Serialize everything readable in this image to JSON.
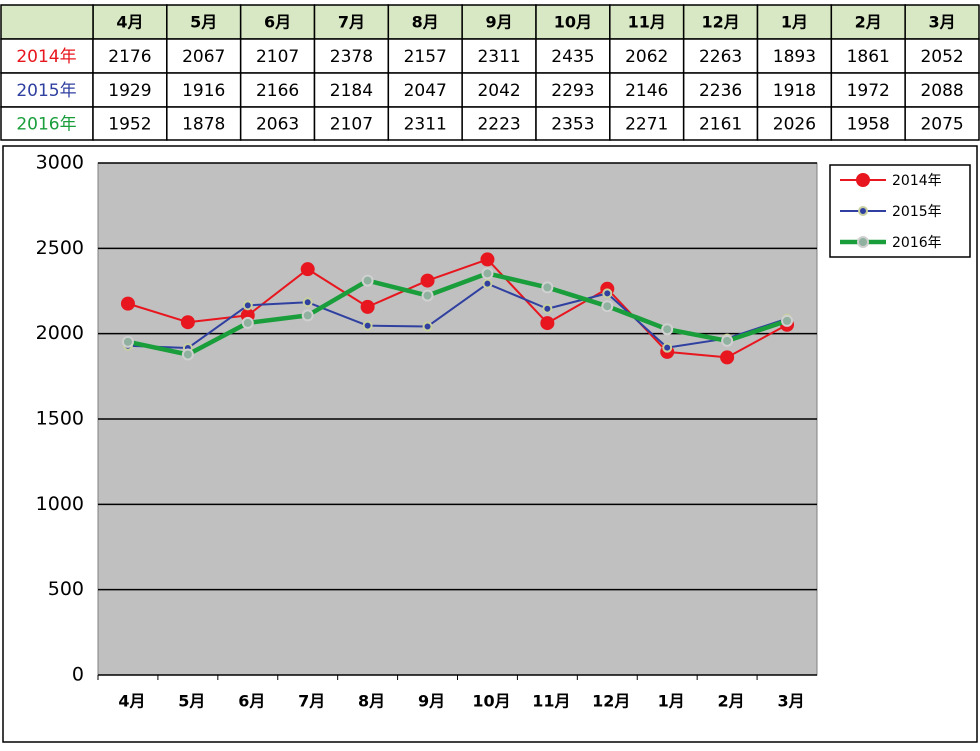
{
  "chart_data": {
    "type": "line",
    "categories": [
      "4月",
      "5月",
      "6月",
      "7月",
      "8月",
      "9月",
      "10月",
      "11月",
      "12月",
      "1月",
      "2月",
      "3月"
    ],
    "series": [
      {
        "name": "2014年",
        "color": "#e8161e",
        "values": [
          2176,
          2067,
          2107,
          2378,
          2157,
          2311,
          2435,
          2062,
          2263,
          1893,
          1861,
          2052
        ]
      },
      {
        "name": "2015年",
        "color": "#3040a0",
        "values": [
          1929,
          1916,
          2166,
          2184,
          2047,
          2042,
          2293,
          2146,
          2236,
          1918,
          1972,
          2088
        ]
      },
      {
        "name": "2016年",
        "color": "#1a9e3c",
        "values": [
          1952,
          1878,
          2063,
          2107,
          2311,
          2223,
          2353,
          2271,
          2161,
          2026,
          1958,
          2075
        ]
      }
    ],
    "ylim": [
      0,
      3000
    ],
    "yticks": [
      0,
      500,
      1000,
      1500,
      2000,
      2500,
      3000
    ],
    "grid": true,
    "legend": "top-right"
  }
}
